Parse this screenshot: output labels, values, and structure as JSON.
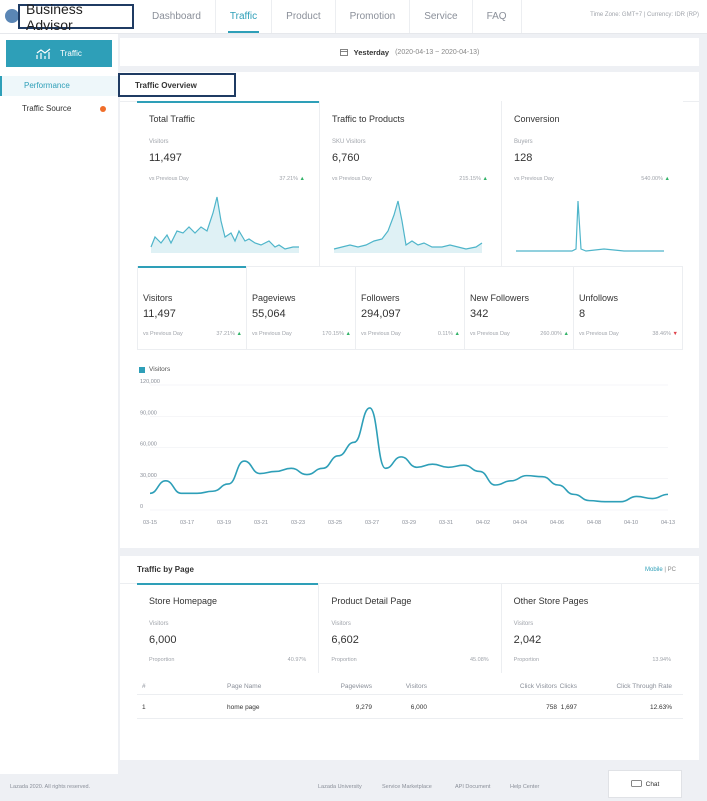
{
  "app": {
    "title": "Business Advisor",
    "timezone": "Time Zone: GMT+7 | Currency: IDR (RP)"
  },
  "nav": [
    "Dashboard",
    "Traffic",
    "Product",
    "Promotion",
    "Service",
    "FAQ"
  ],
  "sidebar": {
    "header": "Traffic",
    "items": [
      "Performance",
      "Traffic Source"
    ]
  },
  "date": {
    "label": "Yesterday",
    "range": "(2020-04-13 ~ 2020-04-13)"
  },
  "overview": {
    "title": "Traffic Overview",
    "cards": [
      {
        "title": "Total Traffic",
        "label": "Visitors",
        "value": "11,497",
        "cmp": "vs Previous Day",
        "pct": "37.21%"
      },
      {
        "title": "Traffic to Products",
        "label": "SKU Visitors",
        "value": "6,760",
        "cmp": "vs Previous Day",
        "pct": "215.15%"
      },
      {
        "title": "Conversion",
        "label": "Buyers",
        "value": "128",
        "cmp": "vs Previous Day",
        "pct": "540.00%"
      }
    ],
    "metrics": [
      {
        "title": "Visitors",
        "value": "11,497",
        "cmp": "vs Previous Day",
        "pct": "37.21%",
        "dir": "up"
      },
      {
        "title": "Pageviews",
        "value": "55,064",
        "cmp": "vs Previous Day",
        "pct": "170.15%",
        "dir": "up"
      },
      {
        "title": "Followers",
        "value": "294,097",
        "cmp": "vs Previous Day",
        "pct": "0.11%",
        "dir": "up"
      },
      {
        "title": "New Followers",
        "value": "342",
        "cmp": "vs Previous Day",
        "pct": "260.00%",
        "dir": "up"
      },
      {
        "title": "Unfollows",
        "value": "8",
        "cmp": "vs Previous Day",
        "pct": "38.46%",
        "dir": "down"
      }
    ]
  },
  "chart_data": {
    "type": "line",
    "series": [
      {
        "name": "Visitors",
        "values": [
          16000,
          28000,
          16000,
          16000,
          18000,
          25000,
          47000,
          35000,
          37000,
          40000,
          34000,
          40000,
          52000,
          65000,
          98000,
          40000,
          51000,
          41000,
          44000,
          41000,
          43000,
          37000,
          24000,
          28000,
          33000,
          32000,
          24000,
          15000,
          9000,
          8000,
          8000,
          13000,
          11000,
          15000
        ]
      }
    ],
    "x_ticks": [
      "03-15",
      "03-17",
      "03-19",
      "03-21",
      "03-23",
      "03-25",
      "03-27",
      "03-29",
      "03-31",
      "04-02",
      "04-04",
      "04-06",
      "04-08",
      "04-10",
      "04-13"
    ],
    "yticks": [
      "0",
      "30,000",
      "60,000",
      "90,000",
      "120,000"
    ],
    "ylim": [
      0,
      120000
    ],
    "color": "#2e9fb8"
  },
  "pages": {
    "title": "Traffic by Page",
    "toggle": {
      "mobile": "Mobile",
      "pc": "PC"
    },
    "cards": [
      {
        "title": "Store Homepage",
        "label": "Visitors",
        "value": "6,000",
        "prop": "Proportion",
        "pct": "40.97%"
      },
      {
        "title": "Product Detail Page",
        "label": "Visitors",
        "value": "6,602",
        "prop": "Proportion",
        "pct": "45.08%"
      },
      {
        "title": "Other Store Pages",
        "label": "Visitors",
        "value": "2,042",
        "prop": "Proportion",
        "pct": "13.94%"
      }
    ],
    "headers": [
      "#",
      "Page Name",
      "Pageviews",
      "Visitors",
      "Click Visitors",
      "Clicks",
      "Click Through Rate"
    ],
    "rows": [
      [
        "1",
        "home page",
        "9,279",
        "6,000",
        "758",
        "1,697",
        "12.63%"
      ]
    ]
  },
  "footer": {
    "copyright": "Lazada 2020. All rights reserved.",
    "links": [
      "Lazada University",
      "Service Marketplace",
      "API Document",
      "Help Center"
    ],
    "chat": "Chat"
  }
}
